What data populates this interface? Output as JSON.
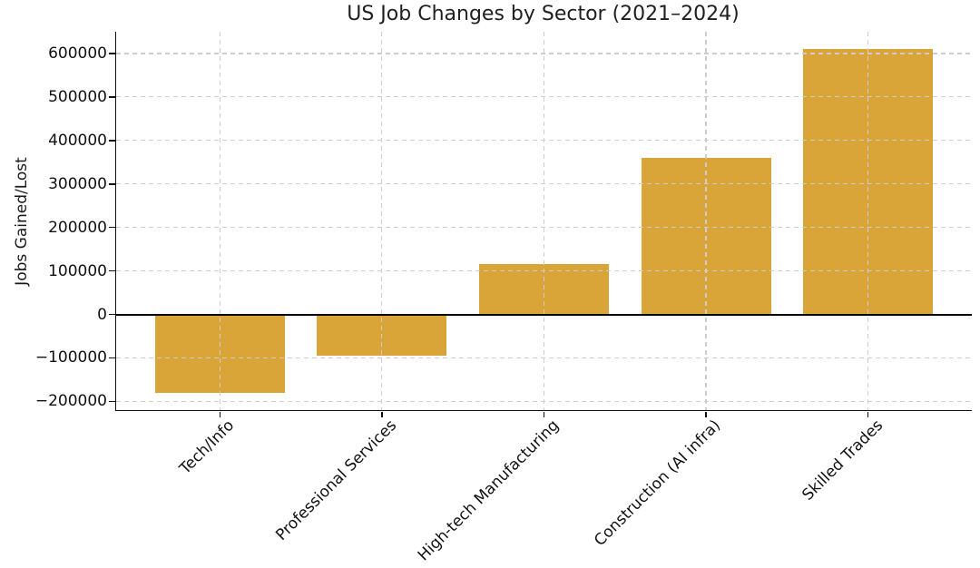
{
  "chart_data": {
    "type": "bar",
    "title": "US Job Changes by Sector (2021–2024)",
    "xlabel": "",
    "ylabel": "Jobs Gained/Lost",
    "categories": [
      "Tech/Info",
      "Professional Services",
      "High-tech Manufacturing",
      "Construction (AI infra)",
      "Skilled Trades"
    ],
    "values": [
      -180000,
      -95000,
      115000,
      360000,
      610000
    ],
    "bar_color": "#d9a438",
    "ylim": [
      -220000,
      650000
    ],
    "yticks": [
      -200000,
      -100000,
      0,
      100000,
      200000,
      300000,
      400000,
      500000,
      600000
    ],
    "ytick_labels": [
      "−200000",
      "−100000",
      "0",
      "100000",
      "200000",
      "300000",
      "400000",
      "500000",
      "600000"
    ],
    "grid": true,
    "grid_style": "dashed",
    "grid_color": "#cdcdcd",
    "zero_line": true,
    "zero_line_color": "#000000",
    "legend": null
  }
}
